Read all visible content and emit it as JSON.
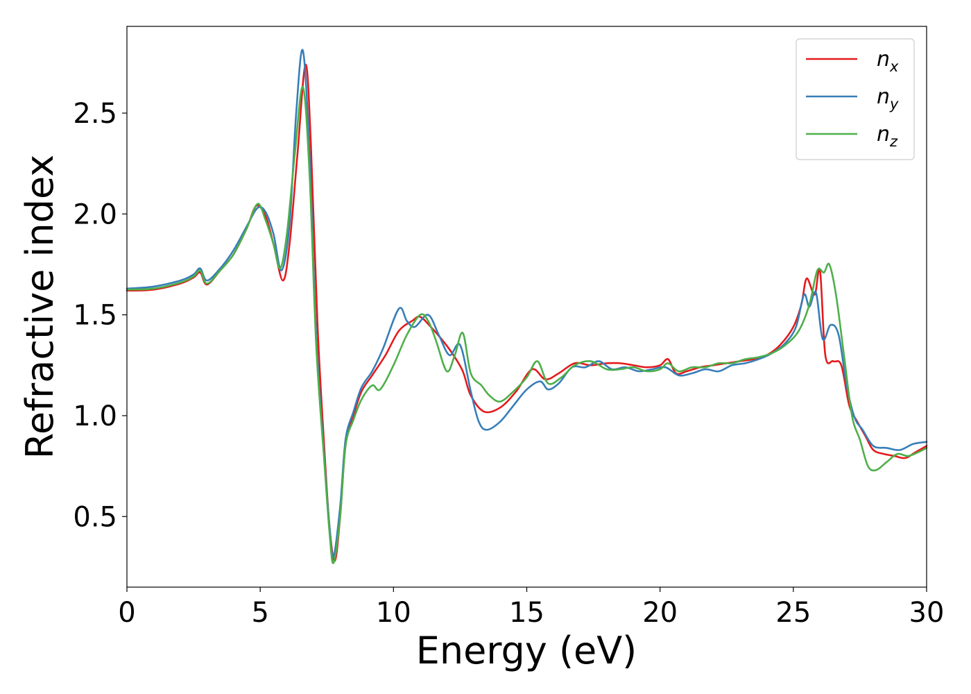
{
  "chart_data": {
    "type": "line",
    "title": "",
    "xlabel": "Energy (eV)",
    "ylabel": "Refractive index",
    "xlim": [
      0,
      30
    ],
    "ylim": [
      0.15,
      2.93
    ],
    "xticks": [
      0,
      5,
      10,
      15,
      20,
      25,
      30
    ],
    "xtick_labels": [
      "0",
      "5",
      "10",
      "15",
      "20",
      "25",
      "30"
    ],
    "yticks": [
      0.5,
      1.0,
      1.5,
      2.0,
      2.5
    ],
    "ytick_labels": [
      "0.5",
      "1.0",
      "1.5",
      "2.0",
      "2.5"
    ],
    "grid": false,
    "legend_position": "top-right",
    "series": [
      {
        "name": "n",
        "subscript": "x",
        "color": "#e41a1c",
        "points": [
          [
            0,
            1.62
          ],
          [
            1,
            1.625
          ],
          [
            2,
            1.655
          ],
          [
            2.5,
            1.685
          ],
          [
            2.75,
            1.71
          ],
          [
            3.0,
            1.65
          ],
          [
            3.5,
            1.72
          ],
          [
            4.0,
            1.8
          ],
          [
            4.5,
            1.93
          ],
          [
            4.85,
            2.04
          ],
          [
            5.2,
            1.99
          ],
          [
            5.5,
            1.85
          ],
          [
            5.85,
            1.67
          ],
          [
            6.1,
            1.85
          ],
          [
            6.4,
            2.3
          ],
          [
            6.7,
            2.74
          ],
          [
            6.9,
            2.35
          ],
          [
            7.15,
            1.45
          ],
          [
            7.4,
            0.85
          ],
          [
            7.6,
            0.45
          ],
          [
            7.8,
            0.28
          ],
          [
            8.0,
            0.5
          ],
          [
            8.2,
            0.85
          ],
          [
            8.5,
            1.0
          ],
          [
            8.8,
            1.12
          ],
          [
            9.2,
            1.2
          ],
          [
            9.7,
            1.3
          ],
          [
            10.2,
            1.42
          ],
          [
            10.7,
            1.47
          ],
          [
            11.0,
            1.49
          ],
          [
            11.4,
            1.44
          ],
          [
            11.8,
            1.38
          ],
          [
            12.2,
            1.31
          ],
          [
            12.6,
            1.22
          ],
          [
            12.9,
            1.1
          ],
          [
            13.4,
            1.02
          ],
          [
            14.0,
            1.04
          ],
          [
            14.6,
            1.12
          ],
          [
            15.2,
            1.23
          ],
          [
            15.7,
            1.18
          ],
          [
            16.2,
            1.21
          ],
          [
            16.8,
            1.26
          ],
          [
            17.4,
            1.25
          ],
          [
            18,
            1.26
          ],
          [
            18.5,
            1.26
          ],
          [
            19,
            1.25
          ],
          [
            19.5,
            1.24
          ],
          [
            20.0,
            1.25
          ],
          [
            20.3,
            1.28
          ],
          [
            20.6,
            1.21
          ],
          [
            21.0,
            1.22
          ],
          [
            21.5,
            1.24
          ],
          [
            22,
            1.25
          ],
          [
            22.5,
            1.26
          ],
          [
            23,
            1.27
          ],
          [
            23.5,
            1.28
          ],
          [
            24,
            1.3
          ],
          [
            24.5,
            1.35
          ],
          [
            25.0,
            1.44
          ],
          [
            25.3,
            1.55
          ],
          [
            25.5,
            1.68
          ],
          [
            25.8,
            1.6
          ],
          [
            26.0,
            1.72
          ],
          [
            26.2,
            1.3
          ],
          [
            26.5,
            1.27
          ],
          [
            26.8,
            1.25
          ],
          [
            27.1,
            1.05
          ],
          [
            27.4,
            0.97
          ],
          [
            27.7,
            0.9
          ],
          [
            28.0,
            0.83
          ],
          [
            28.4,
            0.81
          ],
          [
            28.8,
            0.8
          ],
          [
            29.2,
            0.79
          ],
          [
            29.6,
            0.82
          ],
          [
            30,
            0.85
          ]
        ]
      },
      {
        "name": "n",
        "subscript": "y",
        "color": "#377eb8",
        "points": [
          [
            0,
            1.63
          ],
          [
            1,
            1.64
          ],
          [
            2,
            1.67
          ],
          [
            2.5,
            1.7
          ],
          [
            2.75,
            1.73
          ],
          [
            3.0,
            1.67
          ],
          [
            3.5,
            1.73
          ],
          [
            4.0,
            1.82
          ],
          [
            4.5,
            1.94
          ],
          [
            4.9,
            2.03
          ],
          [
            5.2,
            2.01
          ],
          [
            5.5,
            1.9
          ],
          [
            5.8,
            1.72
          ],
          [
            6.1,
            1.95
          ],
          [
            6.35,
            2.5
          ],
          [
            6.6,
            2.81
          ],
          [
            6.85,
            2.3
          ],
          [
            7.1,
            1.4
          ],
          [
            7.4,
            0.8
          ],
          [
            7.6,
            0.45
          ],
          [
            7.75,
            0.3
          ],
          [
            8.0,
            0.55
          ],
          [
            8.2,
            0.88
          ],
          [
            8.5,
            1.02
          ],
          [
            8.8,
            1.14
          ],
          [
            9.2,
            1.22
          ],
          [
            9.6,
            1.33
          ],
          [
            10.2,
            1.53
          ],
          [
            10.5,
            1.47
          ],
          [
            10.8,
            1.44
          ],
          [
            11.3,
            1.5
          ],
          [
            11.7,
            1.4
          ],
          [
            12.1,
            1.3
          ],
          [
            12.5,
            1.35
          ],
          [
            12.9,
            1.12
          ],
          [
            13.2,
            0.97
          ],
          [
            13.5,
            0.93
          ],
          [
            14.0,
            0.97
          ],
          [
            14.5,
            1.05
          ],
          [
            15.0,
            1.13
          ],
          [
            15.5,
            1.17
          ],
          [
            15.8,
            1.13
          ],
          [
            16.2,
            1.16
          ],
          [
            16.7,
            1.24
          ],
          [
            17.2,
            1.24
          ],
          [
            17.7,
            1.27
          ],
          [
            18.2,
            1.23
          ],
          [
            18.7,
            1.24
          ],
          [
            19.2,
            1.22
          ],
          [
            19.7,
            1.23
          ],
          [
            20.2,
            1.24
          ],
          [
            20.7,
            1.2
          ],
          [
            21.2,
            1.21
          ],
          [
            21.7,
            1.23
          ],
          [
            22.2,
            1.22
          ],
          [
            22.7,
            1.25
          ],
          [
            23.2,
            1.26
          ],
          [
            23.7,
            1.28
          ],
          [
            24.2,
            1.31
          ],
          [
            24.7,
            1.36
          ],
          [
            25.1,
            1.44
          ],
          [
            25.4,
            1.6
          ],
          [
            25.6,
            1.54
          ],
          [
            25.85,
            1.61
          ],
          [
            26.1,
            1.38
          ],
          [
            26.4,
            1.45
          ],
          [
            26.7,
            1.4
          ],
          [
            27.0,
            1.15
          ],
          [
            27.3,
            0.99
          ],
          [
            27.6,
            0.93
          ],
          [
            28.0,
            0.85
          ],
          [
            28.5,
            0.84
          ],
          [
            29.0,
            0.83
          ],
          [
            29.5,
            0.86
          ],
          [
            30,
            0.87
          ]
        ]
      },
      {
        "name": "n",
        "subscript": "z",
        "color": "#4daf4a",
        "points": [
          [
            0,
            1.625
          ],
          [
            1,
            1.63
          ],
          [
            2,
            1.66
          ],
          [
            2.5,
            1.69
          ],
          [
            2.75,
            1.72
          ],
          [
            3.0,
            1.655
          ],
          [
            3.5,
            1.72
          ],
          [
            4.0,
            1.8
          ],
          [
            4.5,
            1.93
          ],
          [
            4.9,
            2.05
          ],
          [
            5.2,
            1.97
          ],
          [
            5.5,
            1.85
          ],
          [
            5.75,
            1.73
          ],
          [
            6.0,
            1.9
          ],
          [
            6.3,
            2.3
          ],
          [
            6.6,
            2.63
          ],
          [
            6.85,
            2.2
          ],
          [
            7.1,
            1.35
          ],
          [
            7.4,
            0.78
          ],
          [
            7.6,
            0.42
          ],
          [
            7.75,
            0.27
          ],
          [
            8.0,
            0.5
          ],
          [
            8.2,
            0.85
          ],
          [
            8.5,
            0.98
          ],
          [
            8.8,
            1.08
          ],
          [
            9.2,
            1.15
          ],
          [
            9.5,
            1.13
          ],
          [
            10.0,
            1.25
          ],
          [
            10.5,
            1.4
          ],
          [
            11.0,
            1.5
          ],
          [
            11.3,
            1.47
          ],
          [
            11.6,
            1.37
          ],
          [
            12.0,
            1.22
          ],
          [
            12.3,
            1.3
          ],
          [
            12.6,
            1.41
          ],
          [
            12.9,
            1.21
          ],
          [
            13.3,
            1.15
          ],
          [
            13.6,
            1.1
          ],
          [
            14.0,
            1.07
          ],
          [
            14.5,
            1.12
          ],
          [
            15.0,
            1.19
          ],
          [
            15.4,
            1.27
          ],
          [
            15.8,
            1.16
          ],
          [
            16.3,
            1.19
          ],
          [
            16.8,
            1.25
          ],
          [
            17.4,
            1.27
          ],
          [
            18.0,
            1.23
          ],
          [
            18.5,
            1.23
          ],
          [
            19,
            1.24
          ],
          [
            19.5,
            1.22
          ],
          [
            20.0,
            1.23
          ],
          [
            20.3,
            1.26
          ],
          [
            20.7,
            1.22
          ],
          [
            21.2,
            1.24
          ],
          [
            21.7,
            1.24
          ],
          [
            22.2,
            1.26
          ],
          [
            22.7,
            1.26
          ],
          [
            23.2,
            1.28
          ],
          [
            23.7,
            1.29
          ],
          [
            24.2,
            1.31
          ],
          [
            24.7,
            1.35
          ],
          [
            25.2,
            1.42
          ],
          [
            25.6,
            1.55
          ],
          [
            25.9,
            1.72
          ],
          [
            26.15,
            1.71
          ],
          [
            26.35,
            1.75
          ],
          [
            26.6,
            1.6
          ],
          [
            26.9,
            1.3
          ],
          [
            27.2,
            1.0
          ],
          [
            27.5,
            0.88
          ],
          [
            27.8,
            0.75
          ],
          [
            28.1,
            0.73
          ],
          [
            28.5,
            0.77
          ],
          [
            28.9,
            0.81
          ],
          [
            29.3,
            0.8
          ],
          [
            29.7,
            0.82
          ],
          [
            30,
            0.84
          ]
        ]
      }
    ]
  }
}
